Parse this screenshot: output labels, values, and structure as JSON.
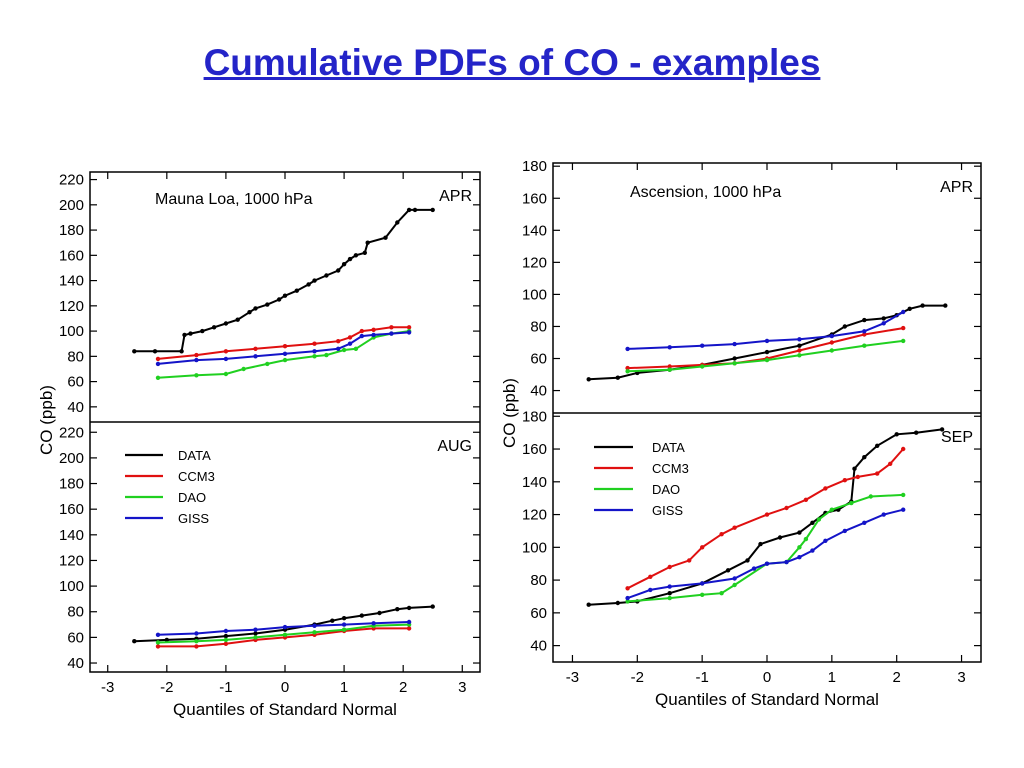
{
  "title": "Cumulative PDFs of CO - examples",
  "title_color": "#2424c8",
  "colors": {
    "DATA": "#000000",
    "CCM3": "#e01010",
    "DAO": "#20d020",
    "GISS": "#1414c8"
  },
  "chart_data": [
    {
      "type": "line",
      "station": "Mauna Loa, 1000 hPa",
      "ylabel": "CO (ppb)",
      "xlabel": "Quantiles of Standard Normal",
      "xlim": [
        -3.3,
        3.3
      ],
      "xticks": [
        -3,
        -2,
        -1,
        0,
        1,
        2,
        3
      ],
      "legend": {
        "placement": "left",
        "panel": "AUG",
        "entries": [
          "DATA",
          "CCM3",
          "DAO",
          "GISS"
        ]
      },
      "panels": [
        {
          "month": "APR",
          "ylim": [
            28,
            226
          ],
          "yticks": [
            40,
            60,
            80,
            100,
            120,
            140,
            160,
            180,
            200,
            220
          ],
          "series": [
            {
              "name": "DATA",
              "x": [
                -2.55,
                -2.2,
                -1.75,
                -1.7,
                -1.6,
                -1.4,
                -1.2,
                -1.0,
                -0.8,
                -0.6,
                -0.5,
                -0.3,
                -0.1,
                0.0,
                0.2,
                0.4,
                0.5,
                0.7,
                0.9,
                1.0,
                1.1,
                1.2,
                1.35,
                1.4,
                1.7,
                1.9,
                2.1,
                2.2,
                2.5
              ],
              "y": [
                84,
                84,
                84,
                97,
                98,
                100,
                103,
                106,
                109,
                115,
                118,
                121,
                125,
                128,
                132,
                137,
                140,
                144,
                148,
                153,
                157,
                160,
                162,
                170,
                174,
                186,
                196,
                196,
                196
              ]
            },
            {
              "name": "CCM3",
              "x": [
                -2.15,
                -1.5,
                -1.0,
                -0.5,
                0.0,
                0.5,
                0.9,
                1.1,
                1.3,
                1.5,
                1.8,
                2.1
              ],
              "y": [
                78,
                81,
                84,
                86,
                88,
                90,
                92,
                95,
                100,
                101,
                103,
                103
              ]
            },
            {
              "name": "DAO",
              "x": [
                -2.15,
                -1.5,
                -1.0,
                -0.7,
                -0.3,
                0.0,
                0.5,
                0.7,
                1.0,
                1.2,
                1.5,
                1.8,
                2.1
              ],
              "y": [
                63,
                65,
                66,
                70,
                74,
                77,
                80,
                81,
                85,
                86,
                95,
                98,
                100
              ]
            },
            {
              "name": "GISS",
              "x": [
                -2.15,
                -1.5,
                -1.0,
                -0.5,
                0.0,
                0.5,
                0.9,
                1.1,
                1.3,
                1.5,
                1.8,
                2.1
              ],
              "y": [
                74,
                77,
                78,
                80,
                82,
                84,
                86,
                90,
                96,
                97,
                98,
                99
              ]
            }
          ]
        },
        {
          "month": "AUG",
          "ylim": [
            33,
            228
          ],
          "yticks": [
            40,
            60,
            80,
            100,
            120,
            140,
            160,
            180,
            200,
            220
          ],
          "series": [
            {
              "name": "DATA",
              "x": [
                -2.55,
                -2.0,
                -1.5,
                -1.0,
                -0.5,
                0.0,
                0.5,
                0.8,
                1.0,
                1.3,
                1.6,
                1.9,
                2.1,
                2.5
              ],
              "y": [
                57,
                58,
                59,
                61,
                63,
                66,
                70,
                73,
                75,
                77,
                79,
                82,
                83,
                84
              ]
            },
            {
              "name": "CCM3",
              "x": [
                -2.15,
                -1.5,
                -1.0,
                -0.5,
                0.0,
                0.5,
                1.0,
                1.5,
                2.1
              ],
              "y": [
                53,
                53,
                55,
                58,
                60,
                62,
                65,
                67,
                67
              ]
            },
            {
              "name": "DAO",
              "x": [
                -2.15,
                -1.5,
                -1.0,
                -0.5,
                0.0,
                0.5,
                1.0,
                1.5,
                2.1
              ],
              "y": [
                56,
                57,
                58,
                60,
                62,
                64,
                66,
                69,
                70
              ]
            },
            {
              "name": "GISS",
              "x": [
                -2.15,
                -1.5,
                -1.0,
                -0.5,
                0.0,
                0.5,
                1.0,
                1.5,
                2.1
              ],
              "y": [
                62,
                63,
                65,
                66,
                68,
                69,
                70,
                71,
                72
              ]
            }
          ]
        }
      ]
    },
    {
      "type": "line",
      "station": "Ascension, 1000 hPa",
      "ylabel": "CO (ppb)",
      "xlabel": "Quantiles of Standard Normal",
      "xlim": [
        -3.3,
        3.3
      ],
      "xticks": [
        -3,
        -2,
        -1,
        0,
        1,
        2,
        3
      ],
      "legend": {
        "placement": "top-left",
        "panel": "SEP",
        "entries": [
          "DATA",
          "CCM3",
          "DAO",
          "GISS"
        ]
      },
      "panels": [
        {
          "month": "APR",
          "ylim": [
            26,
            182
          ],
          "yticks": [
            40,
            60,
            80,
            100,
            120,
            140,
            160,
            180
          ],
          "series": [
            {
              "name": "DATA",
              "x": [
                -2.75,
                -2.3,
                -2.0,
                -1.5,
                -1.0,
                -0.5,
                0.0,
                0.5,
                1.0,
                1.2,
                1.5,
                1.8,
                2.0,
                2.2,
                2.4,
                2.75
              ],
              "y": [
                47,
                48,
                51,
                53,
                56,
                60,
                64,
                68,
                75,
                80,
                84,
                85,
                87,
                91,
                93,
                93
              ]
            },
            {
              "name": "CCM3",
              "x": [
                -2.15,
                -1.5,
                -1.0,
                -0.5,
                0.0,
                0.5,
                1.0,
                1.5,
                2.1
              ],
              "y": [
                54,
                55,
                56,
                57,
                60,
                65,
                70,
                75,
                79
              ]
            },
            {
              "name": "DAO",
              "x": [
                -2.15,
                -1.5,
                -1.0,
                -0.5,
                0.0,
                0.5,
                1.0,
                1.5,
                2.1
              ],
              "y": [
                52,
                53,
                55,
                57,
                59,
                62,
                65,
                68,
                71
              ]
            },
            {
              "name": "GISS",
              "x": [
                -2.15,
                -1.5,
                -1.0,
                -0.5,
                0.0,
                0.5,
                1.0,
                1.5,
                1.8,
                2.1
              ],
              "y": [
                66,
                67,
                68,
                69,
                71,
                72,
                74,
                77,
                82,
                89
              ]
            }
          ]
        },
        {
          "month": "SEP",
          "ylim": [
            30,
            182
          ],
          "yticks": [
            40,
            60,
            80,
            100,
            120,
            140,
            160,
            180
          ],
          "series": [
            {
              "name": "DATA",
              "x": [
                -2.75,
                -2.3,
                -2.0,
                -1.5,
                -1.0,
                -0.6,
                -0.3,
                -0.1,
                0.2,
                0.5,
                0.7,
                0.9,
                1.1,
                1.3,
                1.35,
                1.5,
                1.7,
                2.0,
                2.3,
                2.7
              ],
              "y": [
                65,
                66,
                67,
                72,
                78,
                86,
                92,
                102,
                106,
                109,
                115,
                121,
                123,
                128,
                148,
                155,
                162,
                169,
                170,
                172
              ]
            },
            {
              "name": "CCM3",
              "x": [
                -2.15,
                -1.8,
                -1.5,
                -1.2,
                -1.0,
                -0.7,
                -0.5,
                0.0,
                0.3,
                0.6,
                0.9,
                1.2,
                1.4,
                1.7,
                1.9,
                2.1
              ],
              "y": [
                75,
                82,
                88,
                92,
                100,
                108,
                112,
                120,
                124,
                129,
                136,
                141,
                143,
                145,
                151,
                160
              ]
            },
            {
              "name": "DAO",
              "x": [
                -2.15,
                -1.5,
                -1.0,
                -0.7,
                -0.5,
                0.0,
                0.3,
                0.5,
                0.6,
                0.8,
                1.0,
                1.3,
                1.6,
                2.1
              ],
              "y": [
                67,
                69,
                71,
                72,
                77,
                90,
                91,
                100,
                105,
                117,
                123,
                127,
                131,
                132
              ]
            },
            {
              "name": "GISS",
              "x": [
                -2.15,
                -1.8,
                -1.5,
                -1.0,
                -0.5,
                -0.2,
                0.0,
                0.3,
                0.5,
                0.7,
                0.9,
                1.2,
                1.5,
                1.8,
                2.1
              ],
              "y": [
                69,
                74,
                76,
                78,
                81,
                87,
                90,
                91,
                94,
                98,
                104,
                110,
                115,
                120,
                123
              ]
            }
          ]
        }
      ]
    }
  ]
}
